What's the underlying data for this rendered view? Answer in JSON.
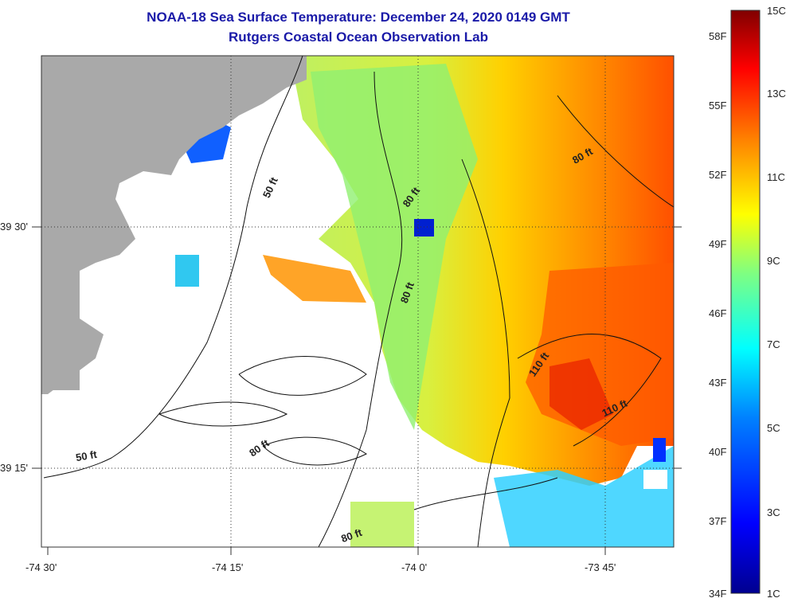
{
  "header": {
    "title": "NOAA-18 Sea Surface Temperature:  December 24, 2020 0149 GMT",
    "subtitle": "Rutgers Coastal Ocean Observation Lab"
  },
  "axes": {
    "x_ticks": [
      "-74 30'",
      "-74 15'",
      "-74 0'",
      "-73 45'"
    ],
    "y_ticks": [
      "39 30'",
      "39 15'"
    ]
  },
  "contour_labels": [
    "50 ft",
    "80 ft",
    "80 ft",
    "80 ft",
    "110 ft",
    "110 ft",
    "50 ft",
    "80 ft",
    "80 ft"
  ],
  "colorbar": {
    "fahrenheit": [
      "58F",
      "55F",
      "52F",
      "49F",
      "46F",
      "43F",
      "40F",
      "37F",
      "34F"
    ],
    "celsius": [
      "15C",
      "13C",
      "11C",
      "9C",
      "7C",
      "5C",
      "3C",
      "1C"
    ],
    "colors": [
      "#00008f",
      "#0000ff",
      "#0080ff",
      "#00ffff",
      "#80ff80",
      "#ffff00",
      "#ff8000",
      "#ff0000",
      "#800000"
    ]
  },
  "map_colors": {
    "land": "#a9a9a9",
    "no_data": "#ffffff",
    "grid": "#333333"
  }
}
